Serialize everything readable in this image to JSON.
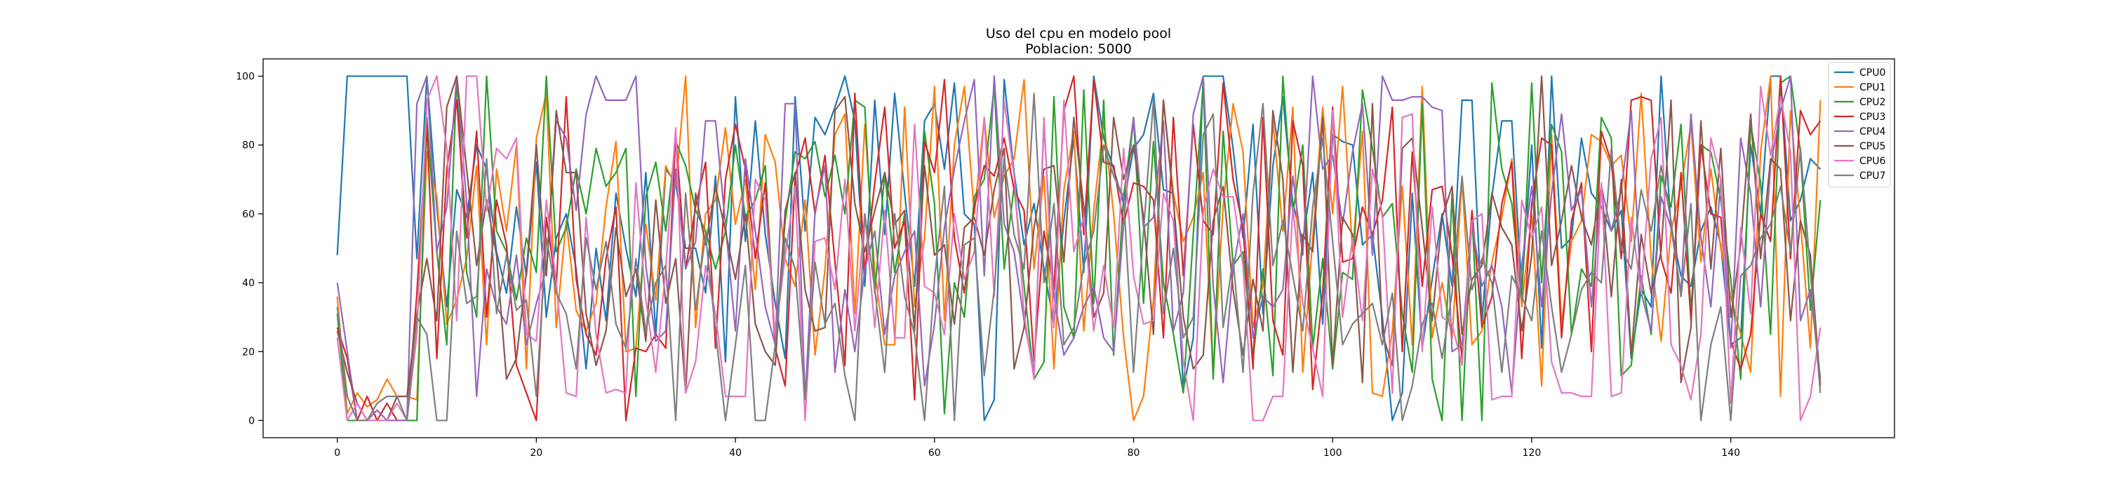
{
  "chart_data": {
    "type": "line",
    "title": "Uso del cpu en modelo pool",
    "subtitle": "Poblacion: 5000",
    "xlabel": "",
    "ylabel": "",
    "xlim": [
      -7.45,
      156.45
    ],
    "ylim": [
      -5,
      105
    ],
    "xticks": [
      0,
      20,
      40,
      60,
      80,
      100,
      120,
      140
    ],
    "yticks": [
      0,
      20,
      40,
      60,
      80,
      100
    ],
    "grid": false,
    "legend_position": "top-right",
    "x_start": 0,
    "x_step": 1,
    "series": [
      {
        "name": "CPU0",
        "color": "#1f77b4",
        "values": [
          48,
          100,
          100,
          100,
          100,
          100,
          100,
          100,
          47,
          100,
          62,
          33,
          67,
          59,
          80,
          73,
          49,
          37,
          62,
          42,
          75,
          30,
          53,
          60,
          44,
          15,
          50,
          29,
          66,
          50,
          36,
          72,
          25,
          73,
          69,
          50,
          50,
          37,
          71,
          17,
          94,
          52,
          87,
          54,
          34,
          18,
          94,
          55,
          88,
          83,
          91,
          100,
          87,
          39,
          93,
          54,
          95,
          66,
          39,
          87,
          92,
          73,
          98,
          60,
          57,
          0,
          6,
          99,
          72,
          51,
          63,
          44,
          28,
          58,
          82,
          43,
          100,
          82,
          73,
          63,
          79,
          83,
          95,
          67,
          66,
          9,
          24,
          100,
          100,
          100,
          79,
          53,
          86,
          31,
          74,
          94,
          63,
          52,
          72,
          28,
          83,
          81,
          80,
          51,
          54,
          30,
          0,
          8,
          66,
          21,
          41,
          60,
          39,
          93,
          93,
          29,
          65,
          87,
          87,
          38,
          80,
          21,
          100,
          50,
          53,
          82,
          66,
          62,
          55,
          61,
          18,
          38,
          33,
          100,
          56,
          42,
          39,
          55,
          62,
          51,
          22,
          24,
          80,
          60,
          100,
          100,
          58,
          64,
          76,
          73
        ]
      },
      {
        "name": "CPU1",
        "color": "#ff7f0e",
        "values": [
          36,
          2,
          8,
          4,
          6,
          12,
          7,
          7,
          6,
          78,
          65,
          28,
          35,
          47,
          74,
          22,
          73,
          55,
          80,
          15,
          82,
          95,
          27,
          58,
          32,
          26,
          34,
          62,
          81,
          20,
          21,
          57,
          35,
          74,
          68,
          100,
          27,
          60,
          64,
          85,
          57,
          70,
          38,
          83,
          75,
          47,
          39,
          64,
          19,
          44,
          83,
          89,
          31,
          86,
          43,
          22,
          22,
          91,
          33,
          53,
          97,
          29,
          80,
          97,
          60,
          88,
          59,
          71,
          76,
          99,
          44,
          71,
          15,
          67,
          84,
          26,
          61,
          87,
          60,
          24,
          0,
          7,
          35,
          93,
          66,
          52,
          59,
          72,
          13,
          62,
          92,
          78,
          27,
          39,
          87,
          55,
          91,
          14,
          53,
          91,
          60,
          97,
          49,
          84,
          8,
          7,
          26,
          68,
          22,
          97,
          24,
          40,
          24,
          70,
          22,
          26,
          46,
          59,
          76,
          33,
          60,
          10,
          83,
          28,
          52,
          58,
          83,
          81,
          74,
          77,
          52,
          95,
          47,
          23,
          55,
          68,
          86,
          46,
          73,
          50,
          36,
          25,
          14,
          78,
          100,
          7,
          90,
          58,
          21,
          93
        ]
      },
      {
        "name": "CPU2",
        "color": "#2ca02c",
        "values": [
          31,
          0,
          0,
          0,
          0,
          0,
          0,
          0,
          0,
          88,
          49,
          22,
          100,
          43,
          30,
          100,
          55,
          49,
          35,
          53,
          43,
          100,
          49,
          56,
          73,
          60,
          79,
          68,
          72,
          79,
          7,
          65,
          75,
          55,
          81,
          74,
          61,
          55,
          44,
          55,
          80,
          59,
          64,
          74,
          22,
          58,
          78,
          76,
          81,
          65,
          77,
          60,
          93,
          91,
          37,
          72,
          43,
          60,
          26,
          84,
          63,
          2,
          40,
          30,
          65,
          70,
          97,
          44,
          68,
          39,
          12,
          17,
          94,
          33,
          24,
          96,
          34,
          93,
          19,
          65,
          88,
          34,
          81,
          40,
          25,
          8,
          54,
          98,
          12,
          84,
          45,
          49,
          18,
          44,
          13,
          100,
          60,
          80,
          21,
          47,
          15,
          43,
          41,
          96,
          79,
          59,
          63,
          31,
          14,
          92,
          12,
          0,
          66,
          0,
          60,
          0,
          98,
          73,
          63,
          35,
          98,
          40,
          86,
          78,
          25,
          44,
          39,
          88,
          82,
          13,
          16,
          42,
          25,
          71,
          62,
          86,
          31,
          80,
          78,
          64,
          41,
          12,
          86,
          69,
          25,
          98,
          100,
          78,
          32,
          64
        ]
      },
      {
        "name": "CPU3",
        "color": "#d62728",
        "values": [
          27,
          18,
          0,
          7,
          0,
          5,
          0,
          0,
          37,
          86,
          18,
          73,
          93,
          53,
          84,
          30,
          64,
          51,
          16,
          8,
          0,
          59,
          39,
          94,
          41,
          25,
          19,
          47,
          62,
          0,
          21,
          20,
          25,
          21,
          83,
          44,
          62,
          75,
          21,
          70,
          86,
          73,
          47,
          69,
          21,
          10,
          71,
          82,
          60,
          77,
          46,
          16,
          95,
          43,
          69,
          91,
          50,
          58,
          6,
          81,
          72,
          99,
          53,
          37,
          62,
          74,
          71,
          82,
          67,
          61,
          17,
          55,
          38,
          90,
          100,
          54,
          99,
          75,
          74,
          57,
          69,
          68,
          64,
          24,
          88,
          42,
          86,
          58,
          54,
          98,
          70,
          56,
          15,
          88,
          29,
          19,
          87,
          74,
          9,
          37,
          91,
          46,
          47,
          62,
          54,
          64,
          91,
          20,
          78,
          39,
          67,
          68,
          48,
          18,
          61,
          27,
          36,
          63,
          75,
          18,
          63,
          82,
          80,
          24,
          58,
          69,
          20,
          84,
          75,
          47,
          93,
          94,
          93,
          47,
          37,
          72,
          29,
          80,
          60,
          59,
          23,
          15,
          25,
          60,
          52,
          100,
          47,
          90,
          83,
          87
        ]
      },
      {
        "name": "CPU4",
        "color": "#9467bd",
        "values": [
          40,
          20,
          0,
          0,
          3,
          0,
          0,
          0,
          92,
          100,
          49,
          62,
          100,
          63,
          7,
          44,
          33,
          28,
          48,
          22,
          34,
          44,
          87,
          82,
          61,
          89,
          100,
          93,
          93,
          93,
          100,
          45,
          23,
          26,
          73,
          44,
          52,
          87,
          87,
          57,
          26,
          76,
          55,
          33,
          22,
          92,
          92,
          6,
          61,
          74,
          14,
          38,
          20,
          44,
          55,
          25,
          42,
          49,
          55,
          10,
          28,
          56,
          73,
          87,
          99,
          42,
          100,
          57,
          49,
          29,
          14,
          86,
          36,
          19,
          24,
          33,
          39,
          24,
          20,
          57,
          88,
          56,
          59,
          87,
          26,
          37,
          89,
          100,
          39,
          11,
          44,
          60,
          24,
          36,
          33,
          38,
          71,
          48,
          100,
          73,
          77,
          57,
          78,
          92,
          48,
          100,
          93,
          93,
          94,
          94,
          91,
          90,
          20,
          22,
          57,
          39,
          45,
          33,
          8,
          45,
          68,
          33,
          66,
          89,
          61,
          67,
          33,
          68,
          55,
          67,
          90,
          37,
          26,
          65,
          56,
          37,
          89,
          53,
          33,
          70,
          21,
          82,
          66,
          33,
          74,
          90,
          100,
          29,
          38,
          12
        ]
      },
      {
        "name": "CPU5",
        "color": "#8c564b",
        "values": [
          26,
          14,
          5,
          0,
          0,
          0,
          7,
          7,
          31,
          47,
          29,
          91,
          100,
          73,
          45,
          64,
          48,
          12,
          18,
          43,
          80,
          42,
          90,
          72,
          72,
          31,
          16,
          26,
          56,
          36,
          44,
          23,
          64,
          34,
          47,
          8,
          66,
          51,
          68,
          55,
          41,
          60,
          28,
          20,
          16,
          61,
          72,
          38,
          26,
          27,
          90,
          94,
          63,
          49,
          61,
          72,
          57,
          61,
          27,
          74,
          48,
          51,
          28,
          56,
          59,
          48,
          67,
          79,
          15,
          27,
          56,
          73,
          74,
          46,
          88,
          62,
          30,
          37,
          88,
          70,
          80,
          59,
          25,
          93,
          64,
          30,
          15,
          19,
          58,
          68,
          38,
          19,
          41,
          26,
          90,
          70,
          14,
          54,
          49,
          88,
          16,
          59,
          54,
          11,
          92,
          25,
          16,
          79,
          82,
          56,
          29,
          59,
          68,
          25,
          41,
          45,
          66,
          56,
          51,
          26,
          48,
          100,
          45,
          58,
          74,
          59,
          51,
          68,
          36,
          70,
          19,
          54,
          37,
          49,
          93,
          11,
          27,
          87,
          44,
          79,
          30,
          51,
          89,
          47,
          76,
          73,
          29,
          58,
          48,
          10
        ]
      },
      {
        "name": "CPU6",
        "color": "#e377c2",
        "values": [
          24,
          0,
          5,
          0,
          0,
          0,
          5,
          0,
          25,
          93,
          100,
          79,
          29,
          100,
          100,
          61,
          79,
          76,
          82,
          25,
          23,
          64,
          40,
          8,
          7,
          59,
          25,
          8,
          9,
          8,
          69,
          35,
          14,
          44,
          85,
          8,
          17,
          45,
          31,
          7,
          7,
          7,
          70,
          64,
          24,
          48,
          68,
          0,
          52,
          53,
          38,
          70,
          26,
          60,
          27,
          61,
          24,
          24,
          86,
          39,
          37,
          25,
          60,
          41,
          49,
          88,
          36,
          93,
          71,
          31,
          12,
          88,
          27,
          93,
          49,
          59,
          26,
          45,
          27,
          79,
          42,
          28,
          29,
          66,
          58,
          17,
          0,
          61,
          73,
          65,
          65,
          45,
          0,
          0,
          7,
          7,
          62,
          34,
          21,
          7,
          90,
          30,
          53,
          29,
          73,
          60,
          8,
          88,
          89,
          20,
          62,
          30,
          28,
          16,
          58,
          60,
          6,
          7,
          7,
          64,
          53,
          62,
          17,
          8,
          8,
          7,
          7,
          69,
          7,
          8,
          59,
          37,
          76,
          88,
          22,
          16,
          6,
          25,
          82,
          70,
          5,
          56,
          31,
          97,
          77,
          94,
          78,
          0,
          7,
          27
        ]
      },
      {
        "name": "CPU7",
        "color": "#7f7f7f",
        "values": [
          33,
          7,
          0,
          0,
          5,
          7,
          7,
          0,
          30,
          25,
          0,
          0,
          55,
          34,
          36,
          76,
          31,
          48,
          32,
          35,
          7,
          53,
          37,
          31,
          15,
          53,
          38,
          52,
          28,
          21,
          47,
          26,
          40,
          45,
          0,
          66,
          32,
          54,
          26,
          0,
          22,
          45,
          0,
          0,
          22,
          53,
          44,
          6,
          46,
          28,
          34,
          13,
          0,
          60,
          38,
          14,
          60,
          36,
          25,
          0,
          41,
          68,
          0,
          51,
          53,
          13,
          38,
          76,
          54,
          44,
          95,
          40,
          63,
          22,
          27,
          45,
          55,
          80,
          71,
          65,
          14,
          55,
          93,
          31,
          50,
          24,
          30,
          83,
          89,
          27,
          47,
          14,
          66,
          92,
          45,
          58,
          42,
          26,
          62,
          82,
          52,
          22,
          28,
          31,
          34,
          22,
          37,
          0,
          10,
          28,
          34,
          18,
          37,
          71,
          38,
          47,
          40,
          14,
          42,
          36,
          29,
          55,
          33,
          14,
          25,
          38,
          43,
          40,
          79,
          50,
          44,
          67,
          55,
          74,
          58,
          36,
          63,
          0,
          22,
          33,
          0,
          42,
          45,
          53,
          57,
          68,
          49,
          79,
          43,
          8
        ]
      }
    ]
  }
}
